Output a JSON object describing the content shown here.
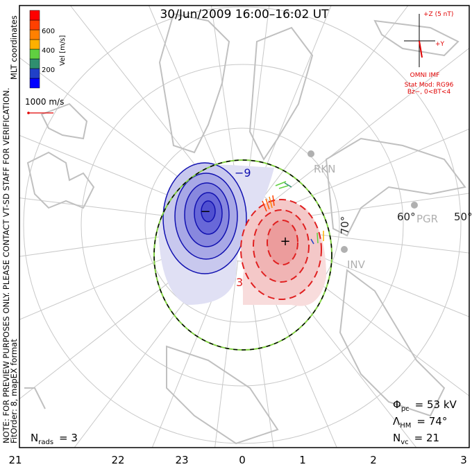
{
  "title": "30/Jun/2009 16:00–16:02 UT",
  "notes": {
    "preview": "NOTE: FOR PREVIEW PURPOSES ONLY. PLEASE CONTACT VT-SD STAFF FOR VERIFICATION.",
    "fit": "FitOrder: 8, mapEX format",
    "coords": "MLT coordinates"
  },
  "colorbar": {
    "label": "Vel [m/s]",
    "ticks": [
      "200",
      "400",
      "600"
    ],
    "colors": [
      "#0000ff",
      "#2040c8",
      "#2f8f6f",
      "#60d040",
      "#ffb000",
      "#ff8000",
      "#ff4000",
      "#ff0000"
    ]
  },
  "scale_vector": "1000 m/s",
  "imf": {
    "z_label": "+Z (5 nT)",
    "y_label": "+Y",
    "source": "OMNI IMF",
    "model": "Stat Mod: RG96",
    "condition": "Bz−, 0<BT<4"
  },
  "radars": [
    "RKN",
    "PGR",
    "INV"
  ],
  "lat_labels": [
    "70°",
    "60°",
    "50°"
  ],
  "contour_labels": {
    "negative": "−9",
    "positive": "3",
    "min_marker": "−",
    "max_marker": "+"
  },
  "stats": {
    "phi_sym": "Φ",
    "phi_sub": "pc",
    "phi_val": "= 53 kV",
    "lam_sym": "Λ",
    "lam_sub": "HM",
    "lam_val": "= 74°",
    "nvc_sym": "N",
    "nvc_sub": "vc",
    "nvc_val": "= 21",
    "nrads_sym": "N",
    "nrads_sub": "rads",
    "nrads_val": "= 3"
  },
  "mlt_labels": [
    "21",
    "22",
    "23",
    "0",
    "1",
    "2",
    "3"
  ],
  "colors": {
    "frame": "#000000",
    "grid": "#c8c8c8",
    "coast": "#c0c0c0",
    "neg": "#1010b0",
    "pos": "#e02020",
    "imf": "#e00000"
  }
}
